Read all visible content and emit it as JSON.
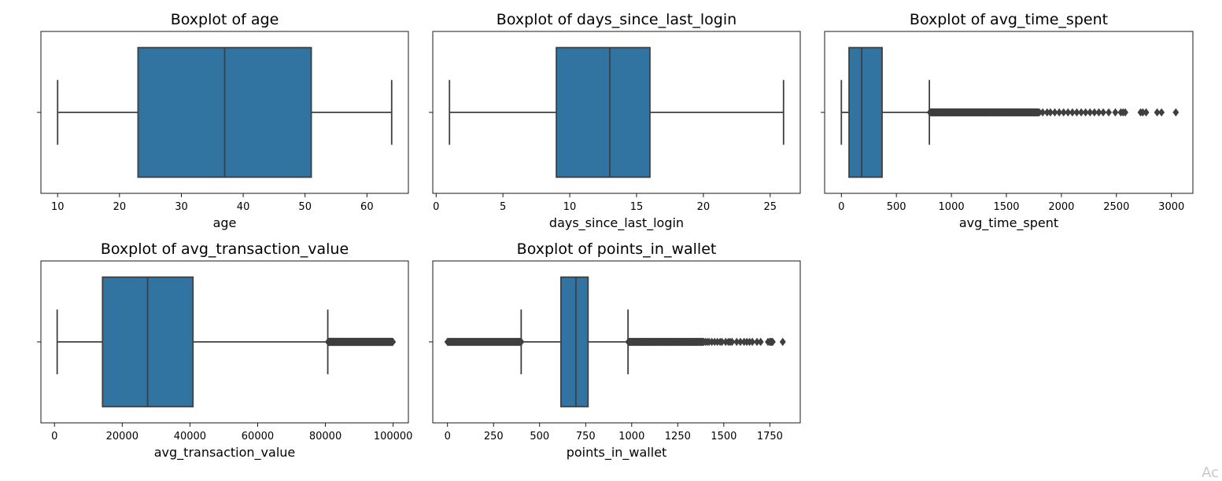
{
  "chart_data": [
    {
      "type": "boxplot",
      "title": "Boxplot of age",
      "xlabel": "age",
      "xlim": [
        7.3,
        66.7
      ],
      "xticks": [
        10,
        20,
        30,
        40,
        50,
        60
      ],
      "whisker_low": 10,
      "q1": 23,
      "median": 37,
      "q3": 51,
      "whisker_high": 64,
      "outlier_ranges": [],
      "outliers": []
    },
    {
      "type": "boxplot",
      "title": "Boxplot of days_since_last_login",
      "xlabel": "days_since_last_login",
      "xlim": [
        -0.25,
        27.25
      ],
      "xticks": [
        0,
        5,
        10,
        15,
        20,
        25
      ],
      "whisker_low": 1,
      "q1": 9,
      "median": 13,
      "q3": 16,
      "whisker_high": 26,
      "outlier_ranges": [],
      "outliers": []
    },
    {
      "type": "boxplot",
      "title": "Boxplot of avg_time_spent",
      "xlabel": "avg_time_spent",
      "xlim": [
        -152,
        3195
      ],
      "xticks": [
        0,
        500,
        1000,
        1500,
        2000,
        2500,
        3000
      ],
      "whisker_low": 0,
      "q1": 70,
      "median": 185,
      "q3": 370,
      "whisker_high": 800,
      "outlier_ranges": [
        [
          805,
          1790,
          230
        ]
      ],
      "outliers": [
        1800,
        1830,
        1870,
        1900,
        1940,
        1980,
        2020,
        2060,
        2100,
        2140,
        2180,
        2220,
        2260,
        2300,
        2340,
        2380,
        2430,
        2490,
        2540,
        2560,
        2580,
        2720,
        2740,
        2770,
        2870,
        2910,
        3040
      ]
    },
    {
      "type": "boxplot",
      "title": "Boxplot of avg_transaction_value",
      "xlabel": "avg_transaction_value",
      "xlim": [
        -4000,
        104500
      ],
      "xticks": [
        0,
        20000,
        40000,
        60000,
        80000,
        100000
      ],
      "whisker_low": 800,
      "q1": 14200,
      "median": 27500,
      "q3": 40900,
      "whisker_high": 80700,
      "outlier_ranges": [
        [
          80800,
          99900,
          300
        ]
      ],
      "outliers": []
    },
    {
      "type": "boxplot",
      "title": "Boxplot of points_in_wallet",
      "xlabel": "points_in_wallet",
      "xlim": [
        -80,
        1915
      ],
      "xticks": [
        0,
        250,
        500,
        750,
        1000,
        1250,
        1500,
        1750
      ],
      "whisker_low": 400,
      "q1": 616,
      "median": 697,
      "q3": 763,
      "whisker_high": 980,
      "outlier_ranges": [
        [
          0,
          400,
          140
        ],
        [
          982,
          1390,
          150
        ]
      ],
      "outliers": [
        1400,
        1410,
        1420,
        1435,
        1450,
        1465,
        1480,
        1490,
        1510,
        1525,
        1535,
        1545,
        1570,
        1590,
        1610,
        1625,
        1640,
        1655,
        1680,
        1700,
        1740,
        1750,
        1755,
        1760,
        1765,
        1820
      ]
    }
  ],
  "watermark": "Ac"
}
